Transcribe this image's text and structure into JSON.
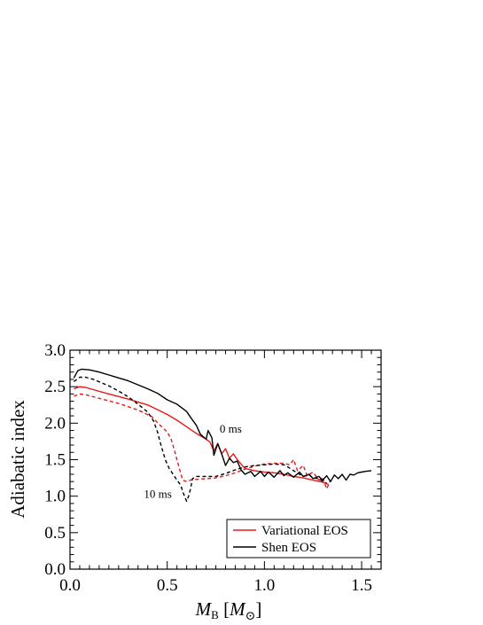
{
  "chart_data": {
    "type": "line",
    "xlabel_main": "M",
    "xlabel_sub": "B",
    "xlabel_unit_open": " [",
    "xlabel_unit_M": "M",
    "xlabel_unit_sun": "⊙",
    "xlabel_unit_close": "]",
    "ylabel": "Adiabatic index",
    "xlim": [
      0.0,
      1.6
    ],
    "ylim": [
      0.0,
      3.0
    ],
    "xticks": [
      "0.0",
      "0.5",
      "1.0",
      "1.5"
    ],
    "yticks": [
      "0.0",
      "0.5",
      "1.0",
      "1.5",
      "2.0",
      "2.5",
      "3.0"
    ],
    "grid": false,
    "legend_placement": "bottom-right",
    "legend": [
      {
        "label": "Variational EOS",
        "color": "#e8191a"
      },
      {
        "label": "Shen EOS",
        "color": "#000000"
      }
    ],
    "annotations": [
      {
        "text": "0 ms",
        "x": 0.77,
        "y": 1.87
      },
      {
        "text": "10 ms",
        "x": 0.38,
        "y": 0.98
      }
    ],
    "series": [
      {
        "key": "variational-0ms",
        "color": "#e8191a",
        "dash": "solid",
        "points": [
          [
            0.02,
            2.47
          ],
          [
            0.05,
            2.5
          ],
          [
            0.08,
            2.49
          ],
          [
            0.12,
            2.46
          ],
          [
            0.2,
            2.4
          ],
          [
            0.3,
            2.33
          ],
          [
            0.4,
            2.25
          ],
          [
            0.5,
            2.12
          ],
          [
            0.55,
            2.04
          ],
          [
            0.6,
            1.95
          ],
          [
            0.65,
            1.86
          ],
          [
            0.7,
            1.78
          ],
          [
            0.72,
            1.74
          ],
          [
            0.74,
            1.62
          ],
          [
            0.76,
            1.72
          ],
          [
            0.78,
            1.58
          ],
          [
            0.8,
            1.65
          ],
          [
            0.82,
            1.52
          ],
          [
            0.84,
            1.58
          ],
          [
            0.86,
            1.5
          ],
          [
            0.88,
            1.44
          ],
          [
            0.9,
            1.38
          ],
          [
            0.95,
            1.35
          ],
          [
            1.0,
            1.33
          ],
          [
            1.05,
            1.32
          ],
          [
            1.1,
            1.3
          ],
          [
            1.15,
            1.27
          ],
          [
            1.2,
            1.25
          ],
          [
            1.25,
            1.22
          ],
          [
            1.3,
            1.19
          ],
          [
            1.33,
            1.16
          ]
        ]
      },
      {
        "key": "variational-10ms",
        "color": "#e8191a",
        "dash": "dashed",
        "points": [
          [
            0.02,
            2.37
          ],
          [
            0.05,
            2.4
          ],
          [
            0.08,
            2.39
          ],
          [
            0.15,
            2.34
          ],
          [
            0.25,
            2.27
          ],
          [
            0.35,
            2.18
          ],
          [
            0.42,
            2.09
          ],
          [
            0.46,
            1.98
          ],
          [
            0.5,
            1.88
          ],
          [
            0.52,
            1.78
          ],
          [
            0.54,
            1.6
          ],
          [
            0.56,
            1.4
          ],
          [
            0.58,
            1.22
          ],
          [
            0.6,
            1.2
          ],
          [
            0.62,
            1.22
          ],
          [
            0.65,
            1.23
          ],
          [
            0.7,
            1.24
          ],
          [
            0.75,
            1.25
          ],
          [
            0.8,
            1.28
          ],
          [
            0.85,
            1.32
          ],
          [
            0.9,
            1.37
          ],
          [
            0.95,
            1.41
          ],
          [
            1.0,
            1.44
          ],
          [
            1.05,
            1.45
          ],
          [
            1.1,
            1.45
          ],
          [
            1.13,
            1.43
          ],
          [
            1.15,
            1.5
          ],
          [
            1.17,
            1.35
          ],
          [
            1.2,
            1.42
          ],
          [
            1.22,
            1.28
          ],
          [
            1.25,
            1.33
          ],
          [
            1.28,
            1.22
          ],
          [
            1.3,
            1.25
          ],
          [
            1.32,
            1.1
          ],
          [
            1.34,
            1.22
          ]
        ]
      },
      {
        "key": "shen-0ms",
        "color": "#000000",
        "dash": "solid",
        "points": [
          [
            0.02,
            2.62
          ],
          [
            0.04,
            2.72
          ],
          [
            0.06,
            2.74
          ],
          [
            0.1,
            2.73
          ],
          [
            0.15,
            2.7
          ],
          [
            0.2,
            2.66
          ],
          [
            0.3,
            2.58
          ],
          [
            0.4,
            2.47
          ],
          [
            0.45,
            2.41
          ],
          [
            0.5,
            2.32
          ],
          [
            0.55,
            2.26
          ],
          [
            0.6,
            2.16
          ],
          [
            0.62,
            2.08
          ],
          [
            0.65,
            1.97
          ],
          [
            0.67,
            1.85
          ],
          [
            0.7,
            1.78
          ],
          [
            0.71,
            1.9
          ],
          [
            0.73,
            1.8
          ],
          [
            0.74,
            1.56
          ],
          [
            0.76,
            1.72
          ],
          [
            0.78,
            1.58
          ],
          [
            0.8,
            1.42
          ],
          [
            0.82,
            1.52
          ],
          [
            0.84,
            1.46
          ],
          [
            0.86,
            1.48
          ],
          [
            0.88,
            1.36
          ],
          [
            0.9,
            1.3
          ],
          [
            0.93,
            1.34
          ],
          [
            0.95,
            1.27
          ],
          [
            0.98,
            1.34
          ],
          [
            1.0,
            1.27
          ],
          [
            1.02,
            1.33
          ],
          [
            1.05,
            1.26
          ],
          [
            1.08,
            1.35
          ],
          [
            1.1,
            1.28
          ],
          [
            1.12,
            1.32
          ],
          [
            1.15,
            1.26
          ],
          [
            1.18,
            1.33
          ],
          [
            1.2,
            1.27
          ],
          [
            1.23,
            1.3
          ],
          [
            1.25,
            1.24
          ],
          [
            1.28,
            1.27
          ],
          [
            1.3,
            1.22
          ],
          [
            1.32,
            1.28
          ],
          [
            1.34,
            1.2
          ],
          [
            1.36,
            1.29
          ],
          [
            1.38,
            1.24
          ],
          [
            1.4,
            1.3
          ],
          [
            1.42,
            1.22
          ],
          [
            1.44,
            1.3
          ],
          [
            1.46,
            1.29
          ],
          [
            1.48,
            1.32
          ],
          [
            1.5,
            1.33
          ],
          [
            1.52,
            1.34
          ],
          [
            1.55,
            1.35
          ]
        ]
      },
      {
        "key": "shen-10ms",
        "color": "#000000",
        "dash": "dashed",
        "points": [
          [
            0.02,
            2.57
          ],
          [
            0.05,
            2.63
          ],
          [
            0.08,
            2.63
          ],
          [
            0.12,
            2.6
          ],
          [
            0.2,
            2.51
          ],
          [
            0.25,
            2.44
          ],
          [
            0.3,
            2.36
          ],
          [
            0.35,
            2.26
          ],
          [
            0.4,
            2.15
          ],
          [
            0.43,
            2.03
          ],
          [
            0.45,
            1.88
          ],
          [
            0.47,
            1.68
          ],
          [
            0.49,
            1.5
          ],
          [
            0.51,
            1.38
          ],
          [
            0.53,
            1.3
          ],
          [
            0.55,
            1.22
          ],
          [
            0.57,
            1.15
          ],
          [
            0.58,
            1.06
          ],
          [
            0.6,
            0.93
          ],
          [
            0.61,
            1.0
          ],
          [
            0.62,
            1.1
          ],
          [
            0.63,
            1.24
          ],
          [
            0.65,
            1.27
          ],
          [
            0.7,
            1.27
          ],
          [
            0.75,
            1.27
          ],
          [
            0.8,
            1.31
          ],
          [
            0.85,
            1.36
          ],
          [
            0.9,
            1.4
          ],
          [
            0.95,
            1.42
          ],
          [
            1.0,
            1.43
          ],
          [
            1.05,
            1.44
          ],
          [
            1.1,
            1.43
          ],
          [
            1.12,
            1.4
          ],
          [
            1.15,
            1.35
          ],
          [
            1.18,
            1.3
          ],
          [
            1.2,
            1.27
          ],
          [
            1.23,
            1.29
          ],
          [
            1.25,
            1.25
          ],
          [
            1.28,
            1.24
          ],
          [
            1.3,
            1.2
          ],
          [
            1.32,
            1.18
          ]
        ]
      }
    ]
  }
}
